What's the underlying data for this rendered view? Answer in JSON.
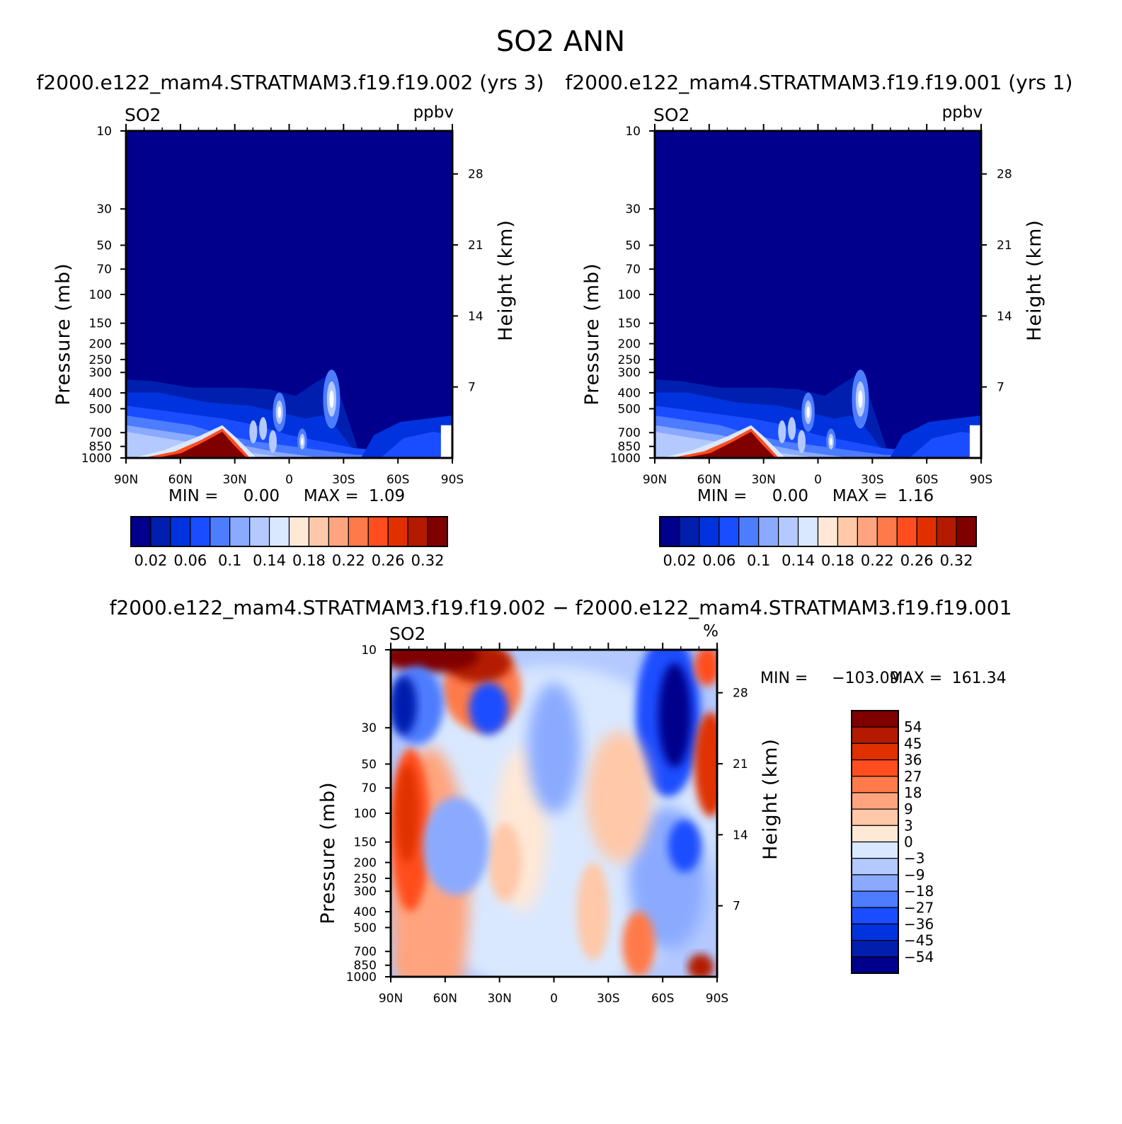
{
  "figure": {
    "title": "SO2 ANN",
    "diff_title": "f2000.e122_mam4.STRATMAM3.f19.f19.002 − f2000.e122_mam4.STRATMAM3.f19.f19.001"
  },
  "chart_data": [
    {
      "type": "heatmap",
      "id": "panel_case",
      "title": "f2000.e122_mam4.STRATMAM3.f19.f19.002 (yrs 3)",
      "variable": "SO2",
      "units": "ppbv",
      "xlabel": "",
      "ylabel": "Pressure (mb)",
      "ylabel_right": "Height (km)",
      "x_ticks": [
        "90N",
        "60N",
        "30N",
        "0",
        "30S",
        "60S",
        "90S"
      ],
      "y_ticks": [
        10,
        30,
        50,
        70,
        100,
        150,
        200,
        250,
        300,
        400,
        500,
        700,
        850,
        1000
      ],
      "y_ticks_right": [
        28,
        21,
        14,
        7
      ],
      "ylim": [
        1000,
        10
      ],
      "y_scale": "log",
      "min_label": "MIN =",
      "min": "0.00",
      "max_label": "MAX =",
      "max": "1.09",
      "colorbar_levels": [
        0.02,
        0.04,
        0.06,
        0.08,
        0.1,
        0.12,
        0.14,
        0.16,
        0.18,
        0.2,
        0.22,
        0.24,
        0.26,
        0.28,
        0.32
      ],
      "colorbar_labels": [
        "0.02",
        "0.06",
        "0.1",
        "0.14",
        "0.18",
        "0.22",
        "0.26",
        "0.32"
      ]
    },
    {
      "type": "heatmap",
      "id": "panel_control",
      "title": "f2000.e122_mam4.STRATMAM3.f19.f19.001 (yrs 1)",
      "variable": "SO2",
      "units": "ppbv",
      "xlabel": "",
      "ylabel": "Pressure (mb)",
      "ylabel_right": "Height (km)",
      "x_ticks": [
        "90N",
        "60N",
        "30N",
        "0",
        "30S",
        "60S",
        "90S"
      ],
      "y_ticks": [
        10,
        30,
        50,
        70,
        100,
        150,
        200,
        250,
        300,
        400,
        500,
        700,
        850,
        1000
      ],
      "y_ticks_right": [
        28,
        21,
        14,
        7
      ],
      "ylim": [
        1000,
        10
      ],
      "y_scale": "log",
      "min_label": "MIN =",
      "min": "0.00",
      "max_label": "MAX =",
      "max": "1.16",
      "colorbar_levels": [
        0.02,
        0.04,
        0.06,
        0.08,
        0.1,
        0.12,
        0.14,
        0.16,
        0.18,
        0.2,
        0.22,
        0.24,
        0.26,
        0.28,
        0.32
      ],
      "colorbar_labels": [
        "0.02",
        "0.06",
        "0.1",
        "0.14",
        "0.18",
        "0.22",
        "0.26",
        "0.32"
      ]
    },
    {
      "type": "heatmap",
      "id": "panel_diff",
      "title": "f2000.e122_mam4.STRATMAM3.f19.f19.002 − f2000.e122_mam4.STRATMAM3.f19.f19.001",
      "variable": "SO2",
      "units": "%",
      "xlabel": "",
      "ylabel": "Pressure (mb)",
      "ylabel_right": "Height (km)",
      "x_ticks": [
        "90N",
        "60N",
        "30N",
        "0",
        "30S",
        "60S",
        "90S"
      ],
      "y_ticks": [
        10,
        30,
        50,
        70,
        100,
        150,
        200,
        250,
        300,
        400,
        500,
        700,
        850,
        1000
      ],
      "y_ticks_right": [
        28,
        21,
        14,
        7
      ],
      "ylim": [
        1000,
        10
      ],
      "y_scale": "log",
      "min_label": "MIN =",
      "min": "−103.09",
      "max_label": "MAX =",
      "max": "161.34",
      "colorbar_levels": [
        54,
        45,
        36,
        27,
        18,
        9,
        3,
        0,
        -3,
        -9,
        -18,
        -27,
        -36,
        -45,
        -54
      ],
      "colorbar_labels": [
        "54",
        "45",
        "36",
        "27",
        "18",
        "9",
        "3",
        "0",
        "−3",
        "−9",
        "−18",
        "−27",
        "−36",
        "−45",
        "−54"
      ]
    }
  ],
  "palettes": {
    "seq": [
      "#00008c",
      "#001fae",
      "#0033dd",
      "#1a4dff",
      "#4d7cff",
      "#8aaaff",
      "#b3c9ff",
      "#d9e8ff",
      "#ffe8d6",
      "#ffc8a8",
      "#ffa47e",
      "#ff7a4a",
      "#ff4d1f",
      "#e03000",
      "#b31a00",
      "#800000"
    ],
    "div": [
      "#800000",
      "#b31a00",
      "#e03000",
      "#ff4d1f",
      "#ff7a4a",
      "#ffa47e",
      "#ffc8a8",
      "#ffe8d6",
      "#d9e8ff",
      "#b3c9ff",
      "#8aaaff",
      "#4d7cff",
      "#1a4dff",
      "#0033dd",
      "#001fae",
      "#00008c"
    ]
  }
}
